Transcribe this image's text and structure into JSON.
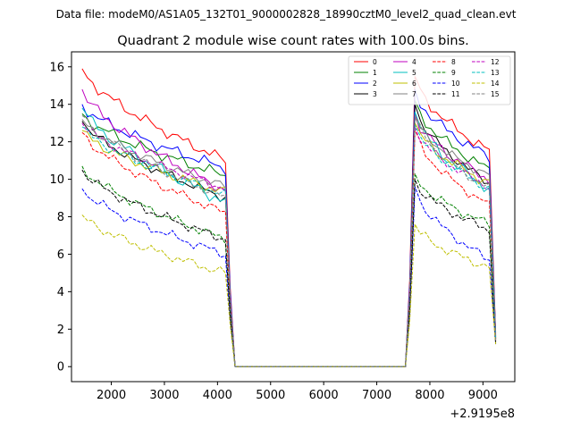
{
  "figure": {
    "suptitle": "Data file: modeM0/AS1A05_132T01_9000002828_18990cztM0_level2_quad_clean.evt"
  },
  "chart_data": {
    "type": "line",
    "title": "Quadrant 2 module wise count rates with 100.0s bins.",
    "xlabel": "",
    "ylabel": "",
    "x_offset_label": "+2.9195e8",
    "xlim": [
      1250,
      9600
    ],
    "ylim": [
      -0.8,
      16.8
    ],
    "xticks": [
      2000,
      3000,
      4000,
      5000,
      6000,
      7000,
      8000,
      9000
    ],
    "xtick_labels": [
      "2000",
      "3000",
      "4000",
      "5000",
      "6000",
      "7000",
      "8000",
      "9000"
    ],
    "yticks": [
      0,
      2,
      4,
      6,
      8,
      10,
      12,
      14,
      16
    ],
    "ytick_labels": [
      "0",
      "2",
      "4",
      "6",
      "8",
      "10",
      "12",
      "14",
      "16"
    ],
    "legend": {
      "location": "top-right",
      "columns": 4
    },
    "gap": {
      "zero_start": 4330,
      "zero_end": 7540,
      "x_first_low": 4240,
      "x_last_high": 7620,
      "x_end": 9240
    },
    "series": [
      {
        "name": "0",
        "color": "#ff0000",
        "dash": "solid",
        "start": 15.9,
        "end1": 11.0,
        "peak": 15.5,
        "end2": 11.5,
        "low1": 4.2,
        "low2": 1.8,
        "noise": 0.35
      },
      {
        "name": "1",
        "color": "#008000",
        "dash": "solid",
        "start": 13.5,
        "end1": 10.2,
        "peak": 14.2,
        "end2": 10.5,
        "low1": 3.8,
        "low2": 1.6,
        "noise": 0.35
      },
      {
        "name": "2",
        "color": "#0000ff",
        "dash": "solid",
        "start": 14.0,
        "end1": 10.6,
        "peak": 14.8,
        "end2": 11.2,
        "low1": 4.0,
        "low2": 1.7,
        "noise": 0.35
      },
      {
        "name": "3",
        "color": "#000000",
        "dash": "solid",
        "start": 13.1,
        "end1": 9.0,
        "peak": 14.0,
        "end2": 9.8,
        "low1": 3.5,
        "low2": 1.5,
        "noise": 0.3
      },
      {
        "name": "4",
        "color": "#bf00bf",
        "dash": "solid",
        "start": 14.8,
        "end1": 9.4,
        "peak": 13.5,
        "end2": 10.0,
        "low1": 3.6,
        "low2": 1.5,
        "noise": 0.35
      },
      {
        "name": "5",
        "color": "#00bfbf",
        "dash": "solid",
        "start": 13.8,
        "end1": 8.8,
        "peak": 13.6,
        "end2": 9.5,
        "low1": 3.4,
        "low2": 1.4,
        "noise": 0.4
      },
      {
        "name": "6",
        "color": "#bfbf00",
        "dash": "solid",
        "start": 12.6,
        "end1": 9.3,
        "peak": 13.0,
        "end2": 9.8,
        "low1": 3.5,
        "low2": 1.5,
        "noise": 0.35
      },
      {
        "name": "7",
        "color": "#808080",
        "dash": "solid",
        "start": 13.2,
        "end1": 9.6,
        "peak": 13.3,
        "end2": 10.2,
        "low1": 3.6,
        "low2": 1.5,
        "noise": 0.3
      },
      {
        "name": "8",
        "color": "#ff0000",
        "dash": "dashed",
        "start": 12.5,
        "end1": 8.2,
        "peak": 12.6,
        "end2": 8.6,
        "low1": 3.2,
        "low2": 1.4,
        "noise": 0.3
      },
      {
        "name": "9",
        "color": "#008000",
        "dash": "dashed",
        "start": 10.7,
        "end1": 6.8,
        "peak": 10.3,
        "end2": 7.6,
        "low1": 2.8,
        "low2": 1.3,
        "noise": 0.3
      },
      {
        "name": "10",
        "color": "#0000ff",
        "dash": "dashed",
        "start": 9.5,
        "end1": 6.0,
        "peak": 9.6,
        "end2": 5.7,
        "low1": 2.4,
        "low2": 1.2,
        "noise": 0.3
      },
      {
        "name": "11",
        "color": "#000000",
        "dash": "dashed",
        "start": 10.5,
        "end1": 6.8,
        "peak": 10.0,
        "end2": 7.3,
        "low1": 2.7,
        "low2": 1.3,
        "noise": 0.3
      },
      {
        "name": "12",
        "color": "#bf00bf",
        "dash": "dashed",
        "start": 13.0,
        "end1": 9.5,
        "peak": 12.8,
        "end2": 9.6,
        "low1": 3.6,
        "low2": 1.6,
        "noise": 0.3
      },
      {
        "name": "13",
        "color": "#00bfbf",
        "dash": "dashed",
        "start": 12.8,
        "end1": 9.2,
        "peak": 12.9,
        "end2": 9.5,
        "low1": 3.5,
        "low2": 1.5,
        "noise": 0.3
      },
      {
        "name": "14",
        "color": "#bfbf00",
        "dash": "dashed",
        "start": 8.1,
        "end1": 5.0,
        "peak": 7.6,
        "end2": 5.3,
        "low1": 2.2,
        "low2": 1.2,
        "noise": 0.3
      },
      {
        "name": "15",
        "color": "#808080",
        "dash": "dashed",
        "start": 13.4,
        "end1": 9.0,
        "peak": 13.4,
        "end2": 9.5,
        "low1": 3.5,
        "low2": 1.4,
        "noise": 0.3
      }
    ]
  }
}
